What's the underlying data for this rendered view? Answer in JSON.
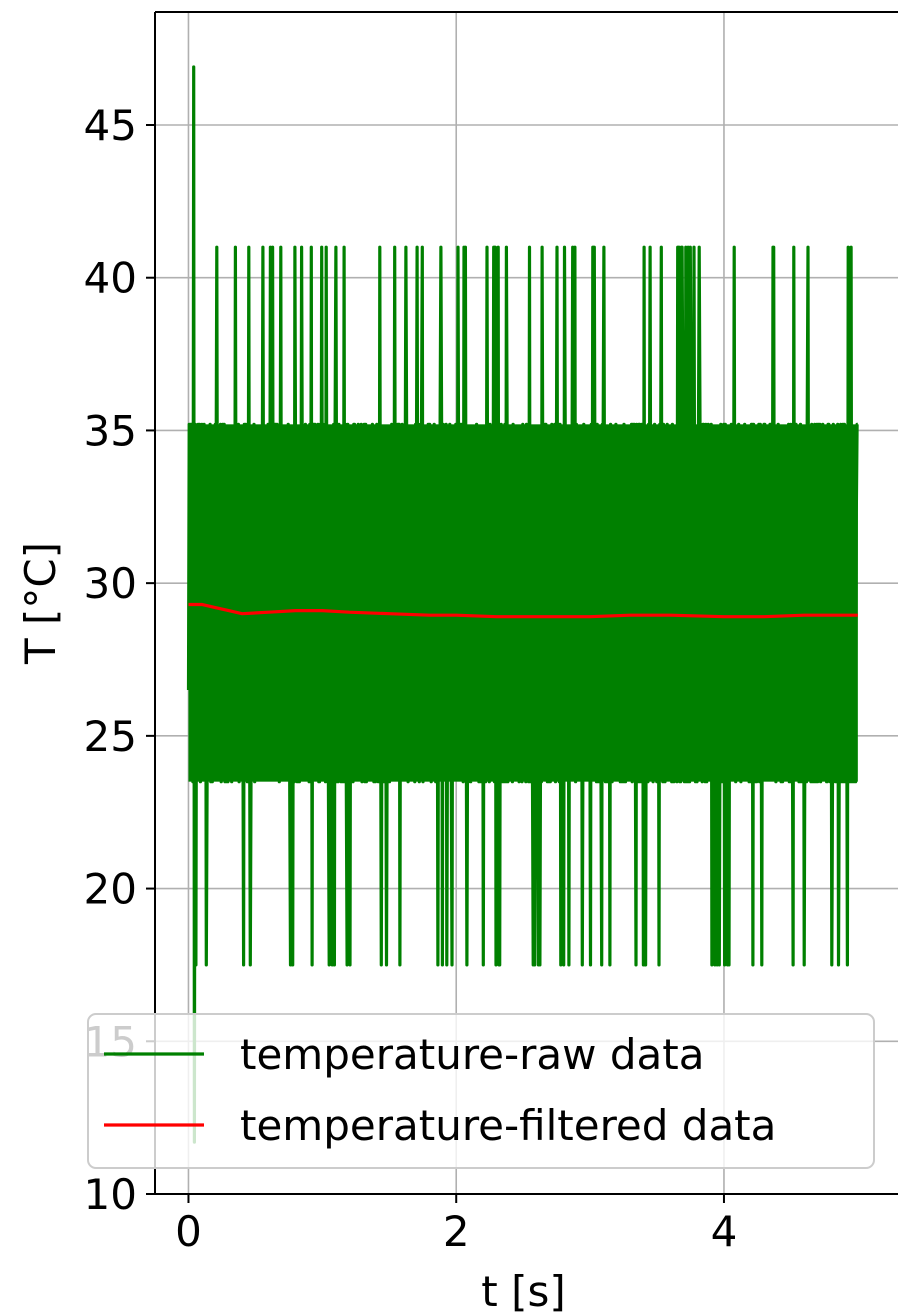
{
  "chart_data": {
    "type": "line",
    "title": "",
    "xlabel": "t [s]",
    "ylabel": "T [°C]",
    "xlim": [
      -0.25,
      5.3
    ],
    "ylim": [
      10,
      48.7
    ],
    "x_ticks": [
      0,
      2,
      4
    ],
    "x_tick_labels": [
      "0",
      "2",
      "4"
    ],
    "y_ticks": [
      10,
      15,
      20,
      25,
      30,
      35,
      40,
      45
    ],
    "y_tick_labels": [
      "10",
      "15",
      "20",
      "25",
      "30",
      "35",
      "40",
      "45"
    ],
    "grid": true,
    "legend_position": "lower-left",
    "series": [
      {
        "name": "temperature-raw data",
        "color": "#008000",
        "x_range": [
          0,
          5
        ],
        "band_min": 23.5,
        "band_max": 35.2,
        "spike_high": 41.0,
        "spike_low": 17.5,
        "max_value": 46.9,
        "min_value": 11.7
      },
      {
        "name": "temperature-filtered data",
        "color": "#ff0000",
        "x": [
          0,
          0.1,
          0.2,
          0.3,
          0.4,
          0.6,
          0.8,
          1.0,
          1.2,
          1.5,
          1.8,
          2.0,
          2.3,
          2.6,
          3.0,
          3.3,
          3.6,
          4.0,
          4.3,
          4.6,
          5.0
        ],
        "y": [
          29.3,
          29.3,
          29.2,
          29.1,
          29.0,
          29.05,
          29.1,
          29.1,
          29.05,
          29.0,
          28.95,
          28.95,
          28.9,
          28.9,
          28.9,
          28.95,
          28.95,
          28.9,
          28.9,
          28.95,
          28.95
        ]
      }
    ]
  }
}
